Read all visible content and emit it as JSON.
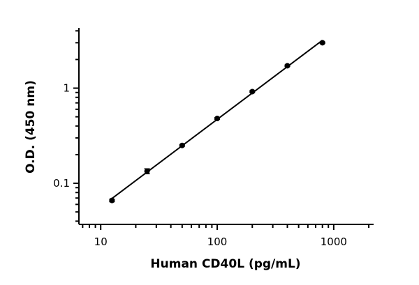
{
  "chart_data": {
    "type": "scatter",
    "xlabel": "Human CD40L (pg/mL)",
    "ylabel": "O.D. (450 nm)",
    "x_scale": "log",
    "y_scale": "log",
    "xlim": [
      6.5,
      2200
    ],
    "ylim": [
      0.037,
      4.3
    ],
    "x_ticks": [
      {
        "value": 10,
        "label": "10"
      },
      {
        "value": 100,
        "label": "100"
      },
      {
        "value": 1000,
        "label": "1000"
      }
    ],
    "y_ticks": [
      {
        "value": 0.1,
        "label": "0.1"
      },
      {
        "value": 1,
        "label": "1"
      }
    ],
    "grid": false,
    "legend": "none",
    "series": [
      {
        "x": [
          12.5,
          25,
          50,
          100,
          200,
          400,
          800
        ],
        "y": [
          0.066,
          0.134,
          0.25,
          0.48,
          0.92,
          1.72,
          3.0
        ],
        "y_error": [
          0.002,
          0.008,
          0.005,
          0.01,
          0.02,
          0.03,
          0.05
        ],
        "fit": "line",
        "color": "#000000"
      }
    ]
  }
}
